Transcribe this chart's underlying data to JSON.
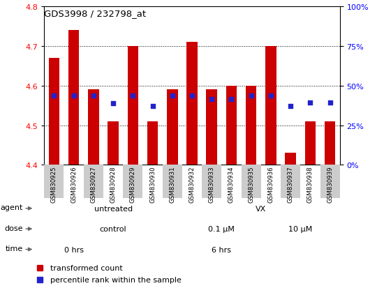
{
  "title": "GDS3998 / 232798_at",
  "samples": [
    "GSM830925",
    "GSM830926",
    "GSM830927",
    "GSM830928",
    "GSM830929",
    "GSM830930",
    "GSM830931",
    "GSM830932",
    "GSM830933",
    "GSM830934",
    "GSM830935",
    "GSM830936",
    "GSM830937",
    "GSM830938",
    "GSM830939"
  ],
  "bar_tops": [
    4.67,
    4.74,
    4.59,
    4.51,
    4.7,
    4.51,
    4.59,
    4.71,
    4.59,
    4.6,
    4.6,
    4.7,
    4.43,
    4.51,
    4.51
  ],
  "bar_base": 4.4,
  "percentile_values": [
    4.575,
    4.575,
    4.575,
    4.555,
    4.575,
    4.548,
    4.575,
    4.575,
    4.567,
    4.567,
    4.575,
    4.575,
    4.548,
    4.558,
    4.558
  ],
  "ylim": [
    4.4,
    4.8
  ],
  "yticks": [
    4.4,
    4.5,
    4.6,
    4.7,
    4.8
  ],
  "right_yticks": [
    0,
    25,
    50,
    75,
    100
  ],
  "bar_color": "#cc0000",
  "percentile_color": "#2222cc",
  "agent_labels": [
    {
      "label": "untreated",
      "start": 0,
      "end": 7,
      "color": "#aaddaa"
    },
    {
      "label": "VX",
      "start": 7,
      "end": 15,
      "color": "#55cc55"
    }
  ],
  "dose_labels": [
    {
      "label": "control",
      "start": 0,
      "end": 7,
      "color": "#ccccff"
    },
    {
      "label": "0.1 μM",
      "start": 7,
      "end": 11,
      "color": "#bbbbee"
    },
    {
      "label": "10 μM",
      "start": 11,
      "end": 15,
      "color": "#8888cc"
    }
  ],
  "time_labels": [
    {
      "label": "0 hrs",
      "start": 0,
      "end": 3,
      "color": "#ffcccc"
    },
    {
      "label": "6 hrs",
      "start": 3,
      "end": 15,
      "color": "#ee7766"
    }
  ],
  "xtick_bg": "#d8d8d8",
  "grid_dotted_color": "#000000",
  "label_arrow_color": "#888888"
}
